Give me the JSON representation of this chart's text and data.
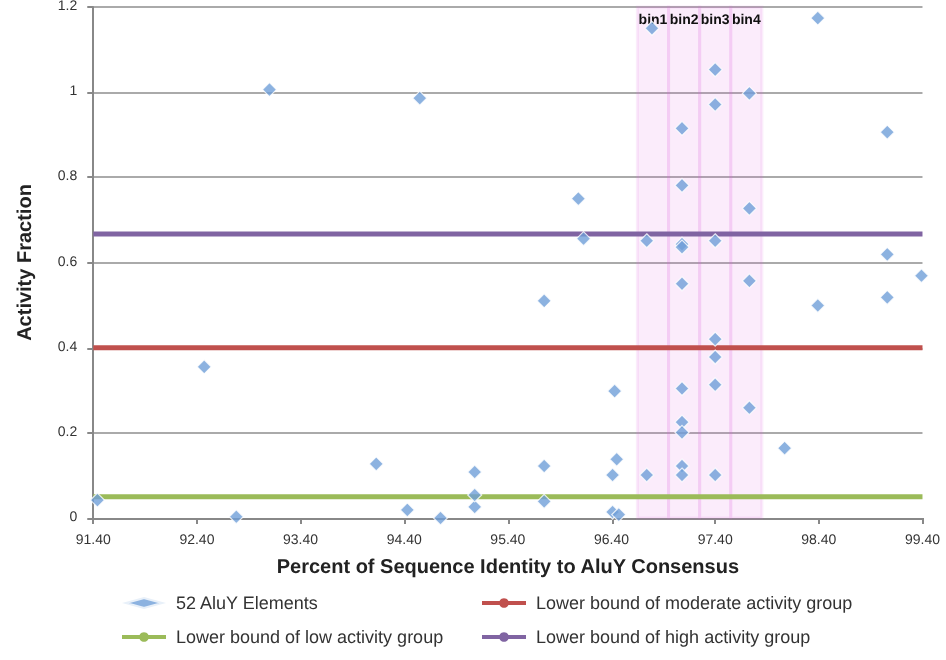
{
  "chart_data": {
    "type": "scatter",
    "xlabel": "Percent of Sequence Identity to AluY Consensus",
    "ylabel": "Activity Fraction",
    "xlim": [
      91.4,
      99.4
    ],
    "xticks": [
      {
        "value": 91.4,
        "label": "91.40"
      },
      {
        "value": 92.4,
        "label": "92.40"
      },
      {
        "value": 93.4,
        "label": "93.40"
      },
      {
        "value": 94.4,
        "label": "94.40"
      },
      {
        "value": 95.4,
        "label": "95.40"
      },
      {
        "value": 96.4,
        "label": "96.40"
      },
      {
        "value": 97.4,
        "label": "97.40"
      },
      {
        "value": 98.4,
        "label": "98.40"
      },
      {
        "value": 99.4,
        "label": "99.40"
      }
    ],
    "ylim": [
      0,
      1.2
    ],
    "yticks": [
      0,
      0.2,
      0.4,
      0.6,
      0.8,
      1,
      1.2
    ],
    "grid": "y",
    "legend": "bottom",
    "marker": "diamond",
    "series": [
      {
        "name": "52 AluY Elements",
        "color": "#6f9fd8",
        "x": [
          93.1,
          94.55,
          92.47,
          94.13,
          95.08,
          91.44,
          92.78,
          94.43,
          94.75,
          95.08,
          95.08,
          95.75,
          96.41,
          96.47,
          95.75,
          95.75,
          96.08,
          96.13,
          96.43,
          96.45,
          96.41,
          96.79,
          96.74,
          96.74,
          97.08,
          97.08,
          97.08,
          97.08,
          97.08,
          97.08,
          97.08,
          97.08,
          97.08,
          97.08,
          97.4,
          97.4,
          97.4,
          97.4,
          97.4,
          97.4,
          97.4,
          97.73,
          97.73,
          97.73,
          97.73,
          98.07,
          98.39,
          98.39,
          99.06,
          99.06,
          99.06,
          99.39
        ],
        "values": [
          1.006,
          0.986,
          0.355,
          0.127,
          0.108,
          0.042,
          0.003,
          0.019,
          0,
          0.026,
          0.054,
          0.039,
          0.014,
          0.008,
          0.122,
          0.51,
          0.75,
          0.656,
          0.298,
          0.138,
          0.101,
          1.15,
          0.651,
          0.101,
          0.915,
          0.781,
          0.643,
          0.636,
          0.55,
          0.304,
          0.225,
          0.201,
          0.122,
          0.101,
          1.053,
          0.971,
          0.651,
          0.42,
          0.378,
          0.313,
          0.101,
          0.997,
          0.727,
          0.557,
          0.259,
          0.164,
          1.174,
          0.499,
          0.906,
          0.619,
          0.518,
          0.569
        ]
      },
      {
        "name": "Lower bound of moderate activity group",
        "type": "line",
        "marker": "none",
        "color": "#c0504d",
        "x": [
          91.4,
          99.4
        ],
        "values": [
          0.4,
          0.4
        ]
      },
      {
        "name": "Lower bound of low activity group",
        "type": "line",
        "marker": "none",
        "color": "#9bbb59",
        "x": [
          91.4,
          99.4
        ],
        "values": [
          0.05,
          0.05
        ]
      },
      {
        "name": "Lower bound of high activity group",
        "type": "line",
        "marker": "none",
        "color": "#8064a2",
        "x": [
          91.4,
          99.4
        ],
        "values": [
          0.667,
          0.667
        ]
      }
    ],
    "bands": [
      {
        "axis": "x",
        "from": 96.65,
        "to": 96.95,
        "label": "bin1",
        "color": "#e060e0"
      },
      {
        "axis": "x",
        "from": 96.95,
        "to": 97.25,
        "label": "bin2",
        "color": "#e060e0"
      },
      {
        "axis": "x",
        "from": 97.25,
        "to": 97.55,
        "label": "bin3",
        "color": "#e060e0"
      },
      {
        "axis": "x",
        "from": 97.55,
        "to": 97.85,
        "label": "bin4",
        "color": "#e060e0"
      }
    ]
  }
}
